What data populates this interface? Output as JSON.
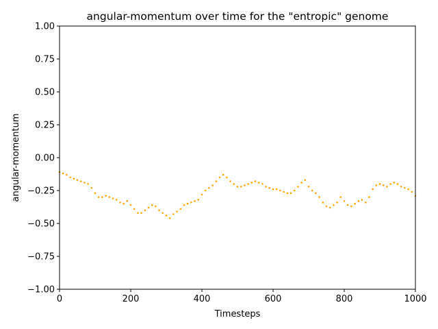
{
  "chart_data": {
    "type": "scatter",
    "title": "angular-momentum over time for the \"entropic\" genome",
    "xlabel": "Timesteps",
    "ylabel": "angular-momentum",
    "xlim": [
      0,
      1000
    ],
    "ylim": [
      -1.0,
      1.0
    ],
    "x_ticks": [
      0,
      200,
      400,
      600,
      800,
      1000
    ],
    "x_tick_labels": [
      "0",
      "200",
      "400",
      "600",
      "800",
      "1000"
    ],
    "y_ticks": [
      -1.0,
      -0.75,
      -0.5,
      -0.25,
      0.0,
      0.25,
      0.5,
      0.75,
      1.0
    ],
    "y_tick_labels": [
      "−1.00",
      "−0.75",
      "−0.50",
      "−0.25",
      "0.00",
      "0.25",
      "0.50",
      "0.75",
      "1.00"
    ],
    "grid": false,
    "marker_color": "#ffa500",
    "series": [
      {
        "color": "#ffa500",
        "x": [
          0,
          10,
          20,
          30,
          40,
          50,
          60,
          70,
          80,
          90,
          100,
          110,
          120,
          130,
          140,
          150,
          160,
          170,
          180,
          190,
          200,
          210,
          220,
          230,
          240,
          250,
          260,
          270,
          280,
          290,
          300,
          310,
          320,
          330,
          340,
          350,
          360,
          370,
          380,
          390,
          400,
          410,
          420,
          430,
          440,
          450,
          460,
          470,
          480,
          490,
          500,
          510,
          520,
          530,
          540,
          550,
          560,
          570,
          580,
          590,
          600,
          610,
          620,
          630,
          640,
          650,
          660,
          670,
          680,
          690,
          700,
          710,
          720,
          730,
          740,
          750,
          760,
          770,
          780,
          790,
          800,
          810,
          820,
          830,
          840,
          850,
          860,
          870,
          880,
          890,
          900,
          910,
          920,
          930,
          940,
          950,
          960,
          970,
          980,
          990,
          1000
        ],
        "y": [
          -0.11,
          -0.12,
          -0.13,
          -0.15,
          -0.16,
          -0.17,
          -0.18,
          -0.19,
          -0.2,
          -0.23,
          -0.27,
          -0.3,
          -0.3,
          -0.29,
          -0.3,
          -0.31,
          -0.32,
          -0.34,
          -0.35,
          -0.33,
          -0.36,
          -0.39,
          -0.42,
          -0.42,
          -0.4,
          -0.38,
          -0.36,
          -0.37,
          -0.4,
          -0.42,
          -0.44,
          -0.46,
          -0.43,
          -0.41,
          -0.39,
          -0.36,
          -0.35,
          -0.34,
          -0.33,
          -0.32,
          -0.28,
          -0.25,
          -0.23,
          -0.21,
          -0.18,
          -0.15,
          -0.13,
          -0.15,
          -0.18,
          -0.2,
          -0.22,
          -0.22,
          -0.21,
          -0.2,
          -0.19,
          -0.18,
          -0.19,
          -0.2,
          -0.22,
          -0.23,
          -0.24,
          -0.24,
          -0.25,
          -0.26,
          -0.27,
          -0.27,
          -0.25,
          -0.22,
          -0.19,
          -0.17,
          -0.22,
          -0.25,
          -0.27,
          -0.3,
          -0.34,
          -0.37,
          -0.38,
          -0.36,
          -0.34,
          -0.3,
          -0.33,
          -0.36,
          -0.37,
          -0.35,
          -0.33,
          -0.32,
          -0.34,
          -0.3,
          -0.24,
          -0.21,
          -0.2,
          -0.21,
          -0.22,
          -0.2,
          -0.19,
          -0.2,
          -0.22,
          -0.23,
          -0.24,
          -0.26,
          -0.29
        ]
      }
    ]
  }
}
